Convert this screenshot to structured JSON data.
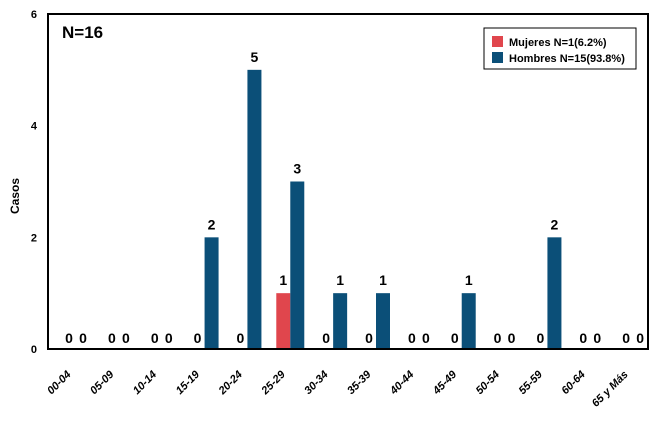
{
  "chart_data": {
    "type": "bar",
    "annotation": "N=16",
    "ylabel": "Casos",
    "xlabel": "",
    "ylim": [
      0,
      6
    ],
    "yticks": [
      0,
      2,
      4,
      6
    ],
    "legend_position": "top-right",
    "categories": [
      "00-04",
      "05-09",
      "10-14",
      "15-19",
      "20-24",
      "25-29",
      "30-34",
      "35-39",
      "40-44",
      "45-49",
      "50-54",
      "55-59",
      "60-64",
      "65 y Más"
    ],
    "series": [
      {
        "name": "Mujeres N=1(6.2%)",
        "color": "#e0464d",
        "values": [
          0,
          0,
          0,
          0,
          0,
          1,
          0,
          0,
          0,
          0,
          0,
          0,
          0,
          0
        ]
      },
      {
        "name": "Hombres N=15(93.8%)",
        "color": "#0b4f78",
        "values": [
          0,
          0,
          0,
          2,
          5,
          3,
          1,
          1,
          0,
          1,
          0,
          2,
          0,
          0
        ]
      }
    ]
  }
}
